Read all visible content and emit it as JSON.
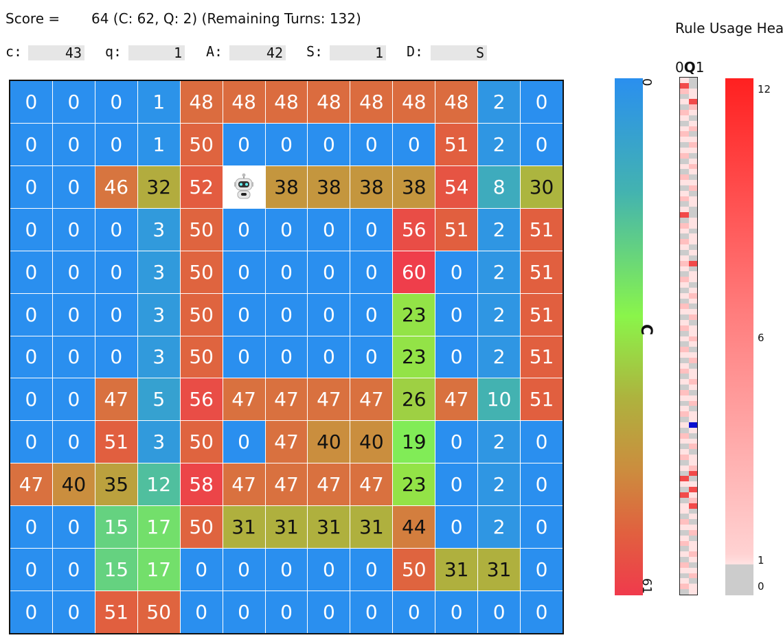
{
  "header": {
    "score_label": "Score =",
    "score_value": "64 (C: 62, Q: 2) (Remaining Turns: 132)",
    "title": "Rule Usage Heat"
  },
  "registers": [
    {
      "label": "c:",
      "value": "43"
    },
    {
      "label": "q:",
      "value": "1"
    },
    {
      "label": "A:",
      "value": "42"
    },
    {
      "label": "S:",
      "value": "1"
    },
    {
      "label": "D:",
      "value": "S"
    }
  ],
  "grid": [
    [
      0,
      0,
      0,
      1,
      48,
      48,
      48,
      48,
      48,
      48,
      48,
      2,
      0
    ],
    [
      0,
      0,
      0,
      1,
      50,
      0,
      0,
      0,
      0,
      0,
      51,
      2,
      0
    ],
    [
      0,
      0,
      46,
      32,
      52,
      "robot",
      38,
      38,
      38,
      38,
      54,
      8,
      30
    ],
    [
      0,
      0,
      0,
      3,
      50,
      0,
      0,
      0,
      0,
      56,
      51,
      2,
      51
    ],
    [
      0,
      0,
      0,
      3,
      50,
      0,
      0,
      0,
      0,
      60,
      0,
      2,
      51
    ],
    [
      0,
      0,
      0,
      3,
      50,
      0,
      0,
      0,
      0,
      23,
      0,
      2,
      51
    ],
    [
      0,
      0,
      0,
      3,
      50,
      0,
      0,
      0,
      0,
      23,
      0,
      2,
      51
    ],
    [
      0,
      0,
      47,
      5,
      56,
      47,
      47,
      47,
      47,
      26,
      47,
      10,
      51
    ],
    [
      0,
      0,
      51,
      3,
      50,
      0,
      47,
      40,
      40,
      19,
      0,
      2,
      0
    ],
    [
      47,
      40,
      35,
      12,
      58,
      47,
      47,
      47,
      47,
      23,
      0,
      2,
      0
    ],
    [
      0,
      0,
      15,
      17,
      50,
      31,
      31,
      31,
      31,
      44,
      0,
      2,
      0
    ],
    [
      0,
      0,
      15,
      17,
      0,
      0,
      0,
      0,
      0,
      50,
      31,
      31,
      0
    ],
    [
      0,
      0,
      51,
      50,
      0,
      0,
      0,
      0,
      0,
      0,
      0,
      0,
      0
    ]
  ],
  "robot_position": {
    "row": 2,
    "col": 5
  },
  "color_scale": {
    "label": "C",
    "min_label": "0",
    "max_label": "61",
    "min": 0,
    "max": 61,
    "stops": [
      "#2a8fef",
      "#43b3b0",
      "#8af54a",
      "#aeb23e",
      "#cc8c3e",
      "#e1603f",
      "#f03a4c"
    ]
  },
  "q_column": {
    "label_left": "0",
    "label_mid": "Q",
    "label_right": "1",
    "cells": [
      [
        1,
        0
      ],
      [
        3,
        0
      ],
      [
        2,
        1
      ],
      [
        0,
        1
      ],
      [
        1,
        3
      ],
      [
        0,
        2
      ],
      [
        2,
        1
      ],
      [
        1,
        0
      ],
      [
        0,
        1
      ],
      [
        1,
        2
      ],
      [
        2,
        0
      ],
      [
        1,
        1
      ],
      [
        0,
        2
      ],
      [
        1,
        1
      ],
      [
        2,
        0
      ],
      [
        0,
        1
      ],
      [
        1,
        2
      ],
      [
        0,
        1
      ],
      [
        2,
        0
      ],
      [
        1,
        1
      ],
      [
        0,
        2
      ],
      [
        1,
        0
      ],
      [
        2,
        1
      ],
      [
        0,
        1
      ],
      [
        1,
        0
      ],
      [
        3,
        0
      ],
      [
        0,
        1
      ],
      [
        2,
        1
      ],
      [
        1,
        0
      ],
      [
        0,
        1
      ],
      [
        2,
        1
      ],
      [
        1,
        0
      ],
      [
        0,
        1
      ],
      [
        1,
        0
      ],
      [
        2,
        3
      ],
      [
        1,
        0
      ],
      [
        0,
        1
      ],
      [
        2,
        1
      ],
      [
        1,
        0
      ],
      [
        0,
        1
      ],
      [
        1,
        2
      ],
      [
        0,
        1
      ],
      [
        2,
        0
      ],
      [
        1,
        1
      ],
      [
        0,
        2
      ],
      [
        1,
        0
      ],
      [
        2,
        1
      ],
      [
        0,
        1
      ],
      [
        1,
        2
      ],
      [
        0,
        1
      ],
      [
        2,
        0
      ],
      [
        1,
        1
      ],
      [
        0,
        2
      ],
      [
        1,
        0
      ],
      [
        2,
        1
      ],
      [
        0,
        1
      ],
      [
        1,
        2
      ],
      [
        0,
        1
      ],
      [
        2,
        0
      ],
      [
        1,
        1
      ],
      [
        0,
        2
      ],
      [
        1,
        0
      ],
      [
        2,
        1
      ],
      [
        0,
        1
      ],
      [
        1,
        -1
      ],
      [
        0,
        1
      ],
      [
        2,
        0
      ],
      [
        1,
        1
      ],
      [
        0,
        2
      ],
      [
        1,
        0
      ],
      [
        2,
        1
      ],
      [
        0,
        1
      ],
      [
        1,
        2
      ],
      [
        0,
        3
      ],
      [
        3,
        0
      ],
      [
        1,
        1
      ],
      [
        0,
        3
      ],
      [
        3,
        1
      ],
      [
        0,
        2
      ],
      [
        1,
        3
      ],
      [
        1,
        0
      ],
      [
        0,
        1
      ],
      [
        2,
        0
      ],
      [
        1,
        1
      ],
      [
        0,
        2
      ],
      [
        1,
        0
      ],
      [
        2,
        1
      ],
      [
        0,
        1
      ],
      [
        1,
        2
      ],
      [
        0,
        1
      ],
      [
        2,
        0
      ],
      [
        1,
        1
      ],
      [
        0,
        2
      ],
      [
        1,
        0
      ],
      [
        2,
        1
      ],
      [
        0,
        1
      ]
    ]
  },
  "heat_scale": {
    "ticks": [
      "12",
      "6",
      "1",
      "0"
    ]
  }
}
